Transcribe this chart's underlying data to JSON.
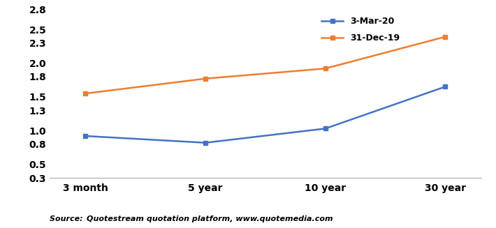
{
  "x_labels": [
    "3 month",
    "5 year",
    "10 year",
    "30 year"
  ],
  "x_positions": [
    0,
    1,
    2,
    3
  ],
  "series": [
    {
      "label": "3-Mar-20",
      "color": "#4472C4",
      "marker": "s",
      "values": [
        0.92,
        0.82,
        1.03,
        1.65
      ]
    },
    {
      "label": "31-Dec-19",
      "color": "#ED7D31",
      "marker": "s",
      "values": [
        1.55,
        1.77,
        1.92,
        2.39
      ]
    }
  ],
  "ylim": [
    0.3,
    2.8
  ],
  "yticks": [
    0.3,
    0.5,
    0.8,
    1.0,
    1.3,
    1.5,
    1.8,
    2.0,
    2.3,
    2.5,
    2.8
  ],
  "source_label": "Source: ",
  "source_italic_part": " Quotestream quotation platform, www.quotemedia.com",
  "background_color": "#ffffff",
  "linewidth": 1.8,
  "markersize": 5,
  "tick_fontsize": 10,
  "tick_fontweight": "bold",
  "legend_fontsize": 9,
  "source_fontsize": 8
}
